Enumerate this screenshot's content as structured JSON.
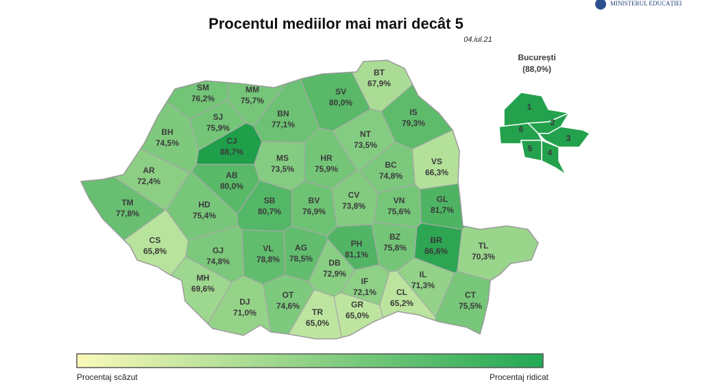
{
  "header": {
    "logo_text": "MINISTERUL EDUCAȚIEI",
    "title": "Procentul mediilor mai mari decât 5",
    "date": "04.iul.21"
  },
  "map": {
    "type": "choropleth",
    "color_low": "#bde59f",
    "color_high": "#1f9f4a",
    "counties": [
      {
        "code": "SM",
        "value": 76.2,
        "label": "76,2%"
      },
      {
        "code": "MM",
        "value": 75.7,
        "label": "75,7%"
      },
      {
        "code": "BT",
        "value": 67.9,
        "label": "67,9%"
      },
      {
        "code": "SV",
        "value": 80.0,
        "label": "80,0%"
      },
      {
        "code": "BN",
        "value": 77.1,
        "label": "77,1%"
      },
      {
        "code": "SJ",
        "value": 75.9,
        "label": "75,9%"
      },
      {
        "code": "BH",
        "value": 74.5,
        "label": "74,5%"
      },
      {
        "code": "CJ",
        "value": 88.7,
        "label": "88,7%"
      },
      {
        "code": "IS",
        "value": 79.3,
        "label": "79,3%"
      },
      {
        "code": "NT",
        "value": 73.5,
        "label": "73,5%"
      },
      {
        "code": "MS",
        "value": 73.5,
        "label": "73,5%"
      },
      {
        "code": "HR",
        "value": 75.9,
        "label": "75,9%"
      },
      {
        "code": "AR",
        "value": 72.4,
        "label": "72,4%"
      },
      {
        "code": "AB",
        "value": 80.0,
        "label": "80,0%"
      },
      {
        "code": "BC",
        "value": 74.8,
        "label": "74,8%"
      },
      {
        "code": "VS",
        "value": 66.3,
        "label": "66,3%"
      },
      {
        "code": "TM",
        "value": 77.8,
        "label": "77,8%"
      },
      {
        "code": "HD",
        "value": 75.4,
        "label": "75,4%"
      },
      {
        "code": "SB",
        "value": 80.7,
        "label": "80,7%"
      },
      {
        "code": "BV",
        "value": 76.9,
        "label": "76,9%"
      },
      {
        "code": "CV",
        "value": 73.8,
        "label": "73,8%"
      },
      {
        "code": "VN",
        "value": 75.6,
        "label": "75,6%"
      },
      {
        "code": "GL",
        "value": 81.7,
        "label": "81,7%"
      },
      {
        "code": "CS",
        "value": 65.8,
        "label": "65,8%"
      },
      {
        "code": "GJ",
        "value": 74.8,
        "label": "74,8%"
      },
      {
        "code": "VL",
        "value": 78.8,
        "label": "78,8%"
      },
      {
        "code": "AG",
        "value": 78.5,
        "label": "78,5%"
      },
      {
        "code": "PH",
        "value": 81.1,
        "label": "81,1%"
      },
      {
        "code": "BZ",
        "value": 75.8,
        "label": "75,8%"
      },
      {
        "code": "BR",
        "value": 86.6,
        "label": "86,6%"
      },
      {
        "code": "TL",
        "value": 70.3,
        "label": "70,3%"
      },
      {
        "code": "MH",
        "value": 69.6,
        "label": "69,6%"
      },
      {
        "code": "DJ",
        "value": 71.0,
        "label": "71,0%"
      },
      {
        "code": "OT",
        "value": 74.6,
        "label": "74,6%"
      },
      {
        "code": "TR",
        "value": 65.0,
        "label": "65,0%"
      },
      {
        "code": "DB",
        "value": 72.9,
        "label": "72,9%"
      },
      {
        "code": "IF",
        "value": 72.1,
        "label": "72,1%"
      },
      {
        "code": "GR",
        "value": 65.0,
        "label": "65,0%"
      },
      {
        "code": "IL",
        "value": 71.3,
        "label": "71,3%"
      },
      {
        "code": "CL",
        "value": 65.2,
        "label": "65,2%"
      },
      {
        "code": "CT",
        "value": 75.5,
        "label": "75,5%"
      }
    ],
    "bucharest": {
      "name": "București",
      "value": 88.0,
      "label": "(88,0%)",
      "sectors": [
        "1",
        "2",
        "3",
        "4",
        "5",
        "6"
      ]
    }
  },
  "legend": {
    "low": "Procentaj scăzut",
    "high": "Procentaj ridicat",
    "color_low": "#fafab8",
    "color_high": "#22a853"
  }
}
